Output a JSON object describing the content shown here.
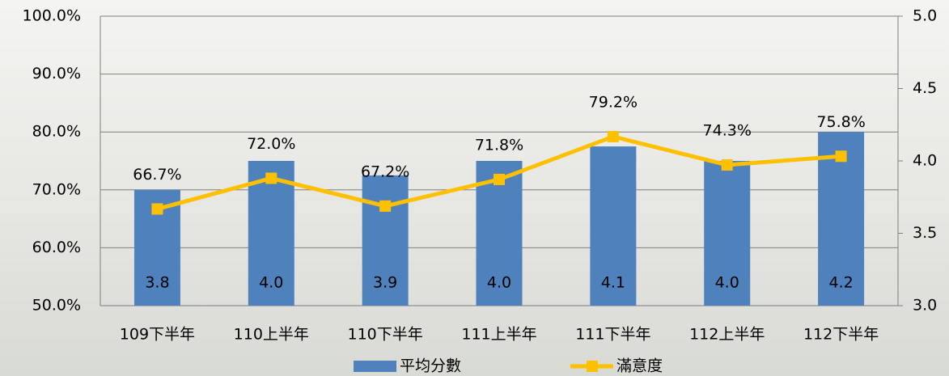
{
  "chart_data": {
    "type": "combo",
    "categories": [
      "109下半年",
      "110上半年",
      "110下半年",
      "111上半年",
      "111下半年",
      "112上半年",
      "112下半年"
    ],
    "series": [
      {
        "name": "平均分數",
        "type": "bar",
        "axis": "y2",
        "color": "#4f81bd",
        "values": [
          3.8,
          4.0,
          3.9,
          4.0,
          4.1,
          4.0,
          4.2
        ],
        "value_labels": [
          "3.8",
          "4.0",
          "3.9",
          "4.0",
          "4.1",
          "4.0",
          "4.2"
        ]
      },
      {
        "name": "滿意度",
        "type": "line",
        "axis": "y",
        "color": "#ffc000",
        "values": [
          66.7,
          72.0,
          67.2,
          71.8,
          79.2,
          74.3,
          75.8
        ],
        "value_labels": [
          "66.7%",
          "72.0%",
          "67.2%",
          "71.8%",
          "79.2%",
          "74.3%",
          "75.8%"
        ]
      }
    ],
    "ylim": [
      50,
      100
    ],
    "yticks": [
      {
        "value": 50,
        "label": "50.0%"
      },
      {
        "value": 60,
        "label": "60.0%"
      },
      {
        "value": 70,
        "label": "70.0%"
      },
      {
        "value": 80,
        "label": "80.0%"
      },
      {
        "value": 90,
        "label": "90.0%"
      },
      {
        "value": 100,
        "label": "100.0%"
      }
    ],
    "y2lim": [
      3,
      5
    ],
    "y2ticks": [
      {
        "value": 3,
        "label": "3.0"
      },
      {
        "value": 3.5,
        "label": "3.5"
      },
      {
        "value": 4,
        "label": "4.0"
      },
      {
        "value": 4.5,
        "label": "4.5"
      },
      {
        "value": 5,
        "label": "5.0"
      }
    ],
    "grid": true,
    "legend": "bottom"
  }
}
